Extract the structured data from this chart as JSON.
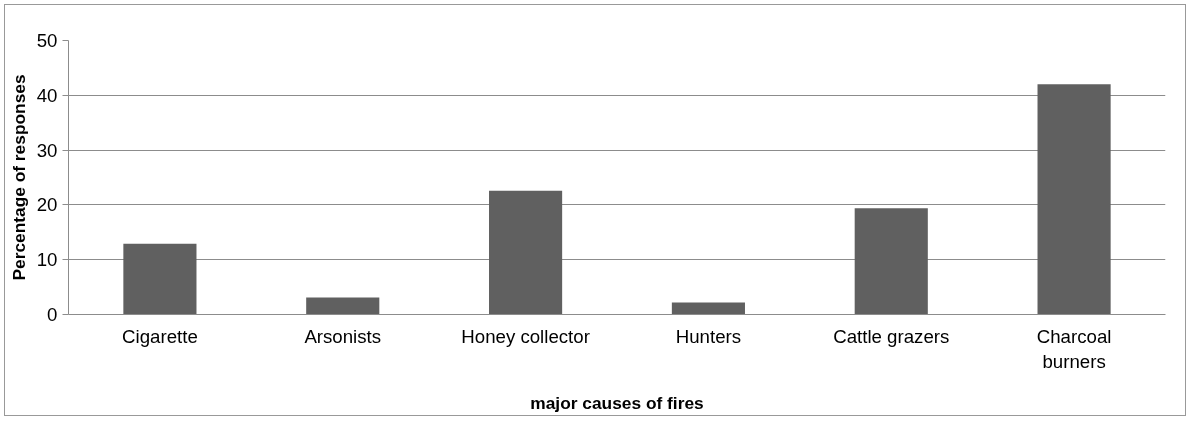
{
  "chart_data": {
    "type": "bar",
    "xlabel": "major causes of fires",
    "ylabel": "Percentage of responses",
    "categories": [
      "Cigarette",
      "Arsonists",
      "Honey collector",
      "Hunters",
      "Cattle grazers",
      "Charcoal burners"
    ],
    "values": [
      12.9,
      3.1,
      22.6,
      2.2,
      19.4,
      42.0
    ],
    "color": "#606060",
    "ylim": [
      0,
      50
    ],
    "yticks": [
      0,
      10,
      20,
      30,
      40,
      50
    ],
    "grid": "y"
  }
}
